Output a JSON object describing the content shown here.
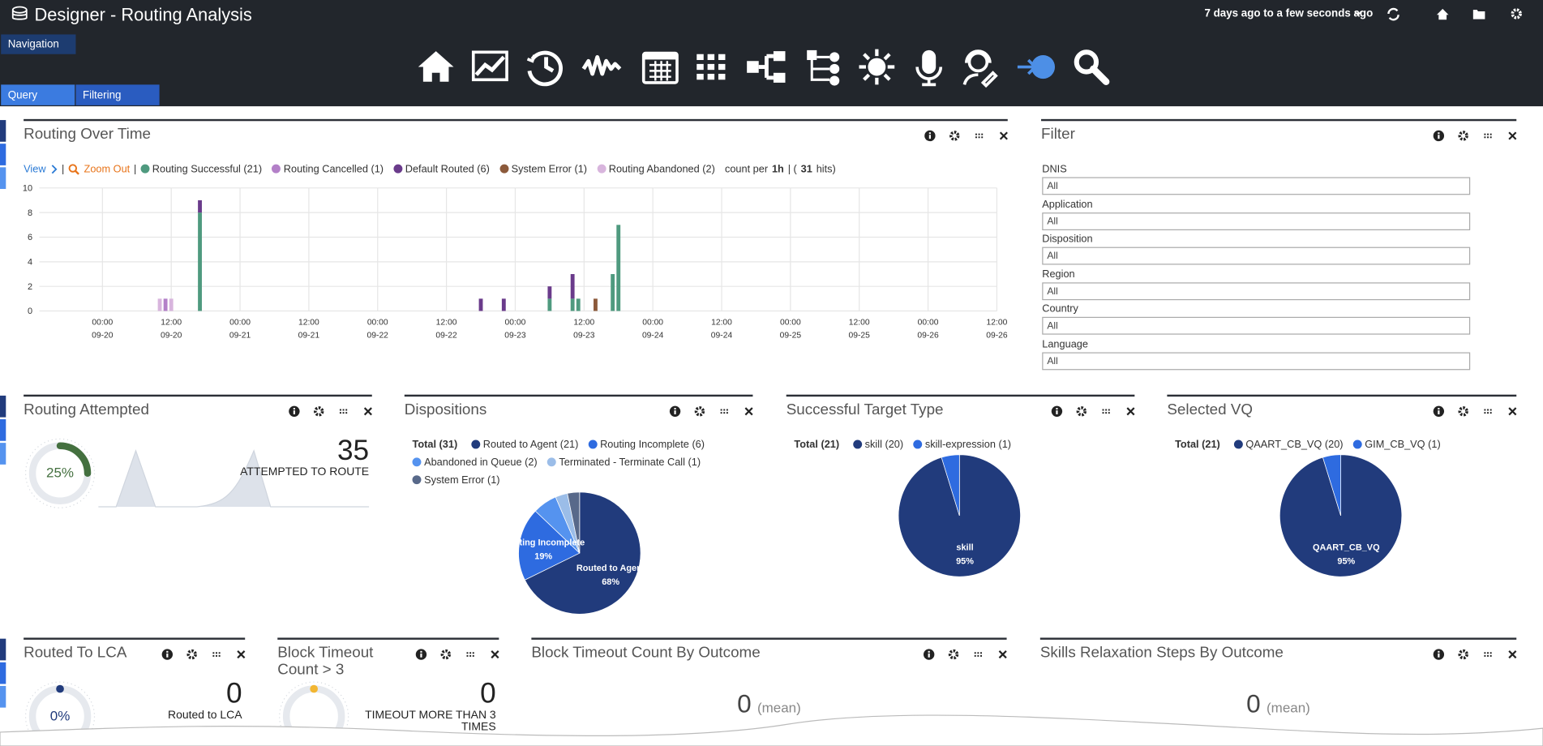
{
  "header": {
    "title": "Designer - Routing Analysis",
    "time_range": "7 days ago to a few seconds ago"
  },
  "sidebar": {
    "navigation": "Navigation",
    "tabs": [
      "Query",
      "Filtering"
    ]
  },
  "filter": {
    "title": "Filter",
    "fields": [
      {
        "label": "DNIS",
        "value": "All"
      },
      {
        "label": "Application",
        "value": "All"
      },
      {
        "label": "Disposition",
        "value": "All"
      },
      {
        "label": "Region",
        "value": "All"
      },
      {
        "label": "Country",
        "value": "All"
      },
      {
        "label": "Language",
        "value": "All"
      }
    ]
  },
  "chart_data": [
    {
      "type": "bar",
      "title": "Routing Over Time",
      "stacked": true,
      "controls": {
        "view": "View",
        "separator": "|",
        "zoom_out": "Zoom Out"
      },
      "summary": [
        {
          "text": "count per",
          "bold": false
        },
        {
          "text": "1h",
          "bold": true
        },
        {
          "text": "| (",
          "bold": false
        },
        {
          "text": "31",
          "bold": true
        },
        {
          "text": "hits)",
          "bold": false
        }
      ],
      "x": [
        10,
        11,
        12,
        17,
        66,
        70,
        78,
        82,
        83,
        86,
        89,
        90
      ],
      "series": [
        {
          "name": "Routing Successful (21)",
          "color": "#4f9a7f",
          "values": [
            0,
            0,
            0,
            8,
            0,
            0,
            1,
            1,
            1,
            0,
            3,
            7
          ]
        },
        {
          "name": "Routing Cancelled (1)",
          "color": "#b380c8",
          "values": [
            0,
            1,
            0,
            0,
            0,
            0,
            0,
            0,
            0,
            0,
            0,
            0
          ]
        },
        {
          "name": "Default Routed (6)",
          "color": "#6a3b8b",
          "values": [
            0,
            0,
            0,
            1,
            1,
            1,
            1,
            2,
            0,
            0,
            0,
            0
          ]
        },
        {
          "name": "System Error (1)",
          "color": "#8c5a3b",
          "values": [
            0,
            0,
            0,
            0,
            0,
            0,
            0,
            0,
            0,
            1,
            0,
            0
          ]
        },
        {
          "name": "Routing Abandoned (2)",
          "color": "#d8b5dd",
          "values": [
            1,
            0,
            1,
            0,
            0,
            0,
            0,
            0,
            0,
            0,
            0,
            0
          ]
        }
      ],
      "xlim": [
        -11,
        156
      ],
      "xticks": [
        {
          "value": 0,
          "label": "00:00\n09-20"
        },
        {
          "value": 12,
          "label": "12:00\n09-20"
        },
        {
          "value": 24,
          "label": "00:00\n09-21"
        },
        {
          "value": 36,
          "label": "12:00\n09-21"
        },
        {
          "value": 48,
          "label": "00:00\n09-22"
        },
        {
          "value": 60,
          "label": "12:00\n09-22"
        },
        {
          "value": 72,
          "label": "00:00\n09-23"
        },
        {
          "value": 84,
          "label": "12:00\n09-23"
        },
        {
          "value": 96,
          "label": "00:00\n09-24"
        },
        {
          "value": 108,
          "label": "12:00\n09-24"
        },
        {
          "value": 120,
          "label": "00:00\n09-25"
        },
        {
          "value": 132,
          "label": "12:00\n09-25"
        },
        {
          "value": 144,
          "label": "00:00\n09-26"
        },
        {
          "value": 156,
          "label": "12:00\n09-26"
        }
      ],
      "ylim": [
        0,
        10
      ],
      "yticks": [
        0,
        2,
        4,
        6,
        8,
        10
      ],
      "grid": true
    },
    {
      "type": "gauge",
      "title": "Routing Attempted",
      "value": 25,
      "value_label": "25%",
      "max": 100,
      "color": "#44703f",
      "count": 35,
      "count_label": "ATTEMPTED TO ROUTE"
    },
    {
      "type": "pie",
      "title": "Dispositions",
      "total_label": "Total (31)",
      "categories": [
        "Routed to Agent (21)",
        "Routing Incomplete (6)",
        "Abandoned in Queue (2)",
        "Terminated - Terminate Call (1)",
        "System Error (1)"
      ],
      "values": [
        21,
        6,
        2,
        1,
        1
      ],
      "colors": [
        "#213b7c",
        "#2e6be0",
        "#5593ef",
        "#9bbde8",
        "#58698a"
      ],
      "slice_labels": [
        {
          "name": "Routed to Agent",
          "percent": "68%"
        },
        {
          "name": "Routing Incomplete",
          "percent": "19%"
        },
        null,
        null,
        null
      ]
    },
    {
      "type": "pie",
      "title": "Successful Target Type",
      "total_label": "Total (21)",
      "categories": [
        "skill (20)",
        "skill-expression (1)"
      ],
      "values": [
        20,
        1
      ],
      "colors": [
        "#213b7c",
        "#2e6be0"
      ],
      "slice_labels": [
        {
          "name": "skill",
          "percent": "95%"
        },
        null
      ]
    },
    {
      "type": "pie",
      "title": "Selected VQ",
      "total_label": "Total (21)",
      "categories": [
        "QAART_CB_VQ (20)",
        "GIM_CB_VQ (1)"
      ],
      "values": [
        20,
        1
      ],
      "colors": [
        "#213b7c",
        "#2e6be0"
      ],
      "slice_labels": [
        {
          "name": "QAART_CB_VQ",
          "percent": "95%"
        },
        null
      ]
    },
    {
      "type": "gauge",
      "title": "Routed To LCA",
      "value": 0,
      "value_label": "0%",
      "max": 100,
      "color": "#213b7c",
      "count": 0,
      "count_label": "Routed to LCA"
    },
    {
      "type": "gauge",
      "title": "Block Timeout Count > 3",
      "value": 0,
      "max": 100,
      "color": "#f2b632",
      "count": 0,
      "count_label": "TIMEOUT MORE THAN 3 TIMES"
    },
    {
      "type": "metric",
      "title": "Block Timeout Count By Outcome",
      "value": 0,
      "unit_label": "(mean)"
    },
    {
      "type": "metric",
      "title": "Skills Relaxation Steps By Outcome",
      "value": 0,
      "unit_label": "(mean)"
    }
  ]
}
